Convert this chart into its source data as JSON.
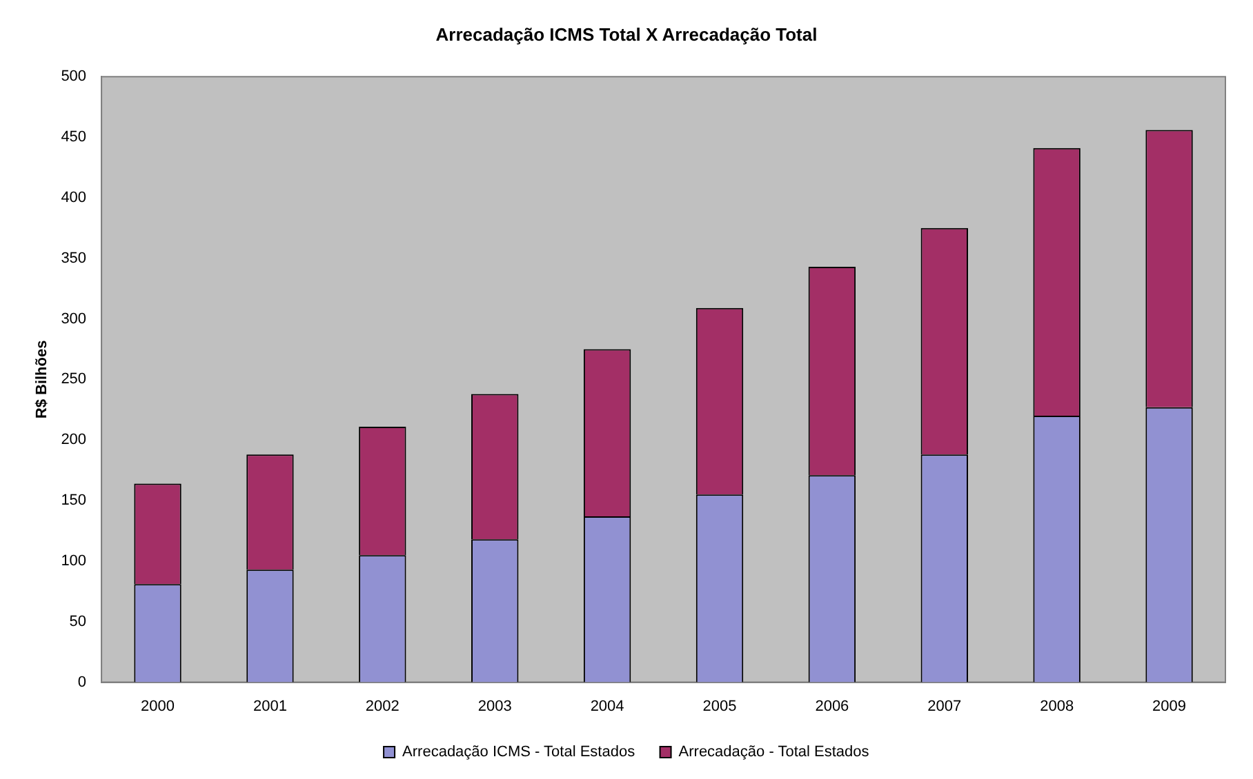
{
  "chart_data": {
    "type": "bar",
    "title": "Arrecadação ICMS Total X Arrecadação Total",
    "ylabel": "R$ Bilhões",
    "categories": [
      "2000",
      "2001",
      "2002",
      "2003",
      "2004",
      "2005",
      "2006",
      "2007",
      "2008",
      "2009"
    ],
    "stacked": true,
    "series": [
      {
        "name": "Arrecadação ICMS - Total Estados",
        "color": "#9191d2",
        "values": [
          81,
          93,
          105,
          118,
          137,
          155,
          171,
          188,
          220,
          227
        ]
      },
      {
        "name": "Arrecadação - Total Estados",
        "color": "#a32f66",
        "values": [
          83,
          95,
          106,
          120,
          138,
          154,
          172,
          187,
          221,
          229
        ]
      }
    ],
    "ylim": [
      0,
      500
    ],
    "yticks": [
      0,
      50,
      100,
      150,
      200,
      250,
      300,
      350,
      400,
      450,
      500
    ],
    "grid": false,
    "legend": "bottom"
  }
}
